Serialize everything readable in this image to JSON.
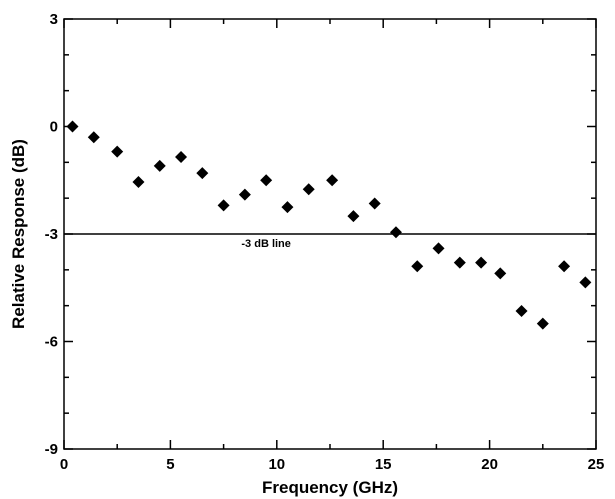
{
  "chart_data": {
    "type": "scatter",
    "title": "",
    "xlabel": "Frequency (GHz)",
    "ylabel": "Relative Response (dB)",
    "xlim": [
      0,
      25
    ],
    "ylim": [
      -9,
      3
    ],
    "xticks": [
      0,
      5,
      10,
      15,
      20,
      25
    ],
    "xtick_labels": [
      "0",
      "5",
      "10",
      "15",
      "20",
      "25"
    ],
    "yticks": [
      3,
      0,
      -3,
      -6,
      -9
    ],
    "ytick_labels": [
      "3",
      "0",
      "-3",
      "-6",
      "-9"
    ],
    "grid": false,
    "marker": "diamond",
    "marker_color": "#000000",
    "series": [
      {
        "x": [
          0.4,
          1.4,
          2.5,
          3.5,
          4.5,
          5.5,
          6.5,
          7.5,
          8.5,
          9.5,
          10.5,
          11.5,
          12.6,
          13.6,
          14.6,
          15.6,
          16.6,
          17.6,
          18.6,
          19.6,
          20.5,
          21.5,
          22.5,
          23.5,
          24.5
        ],
        "y": [
          0.0,
          -0.3,
          -0.7,
          -1.55,
          -1.1,
          -0.85,
          -1.3,
          -2.2,
          -1.9,
          -1.5,
          -2.25,
          -1.75,
          -1.5,
          -2.5,
          -2.15,
          -2.95,
          -3.9,
          -3.4,
          -3.8,
          -3.8,
          -4.1,
          -5.15,
          -5.5,
          -3.9,
          -4.35
        ]
      }
    ],
    "reference_line": {
      "y": -3,
      "label": "-3 dB line",
      "label_x": 9.5
    }
  }
}
